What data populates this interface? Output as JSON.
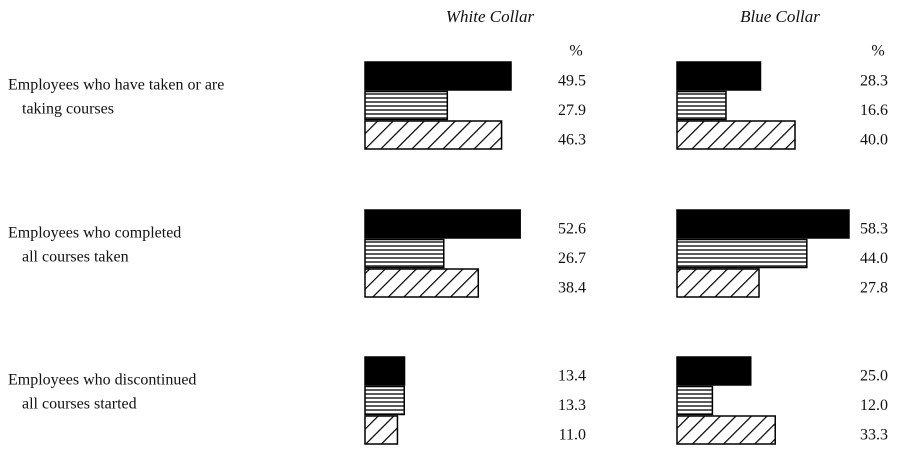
{
  "chart_data": {
    "type": "bar",
    "categories": [
      [
        "Employees who have taken or are",
        "taking courses"
      ],
      [
        "Employees who completed",
        "all courses taken"
      ],
      [
        "Employees who discontinued",
        "all courses started"
      ]
    ],
    "panels": [
      {
        "title": "White Collar",
        "unit": "%",
        "series": [
          {
            "color": "#000000",
            "pattern": "solid",
            "values": [
              49.5,
              52.6,
              13.4
            ],
            "value_labels": [
              "49.5",
              "52.6",
              "13.4"
            ]
          },
          {
            "color": "#000000",
            "pattern": "horizontal",
            "values": [
              27.9,
              26.7,
              13.3
            ],
            "value_labels": [
              "27.9",
              "26.7",
              "13.3"
            ]
          },
          {
            "color": "#000000",
            "pattern": "diagonal",
            "values": [
              46.3,
              38.4,
              11.0
            ],
            "value_labels": [
              "46.3",
              "38.4",
              "11.0"
            ]
          }
        ]
      },
      {
        "title": "Blue Collar",
        "unit": "%",
        "series": [
          {
            "color": "#000000",
            "pattern": "solid",
            "values": [
              28.3,
              58.3,
              25.0
            ],
            "value_labels": [
              "28.3",
              "58.3",
              "25.0"
            ]
          },
          {
            "color": "#000000",
            "pattern": "horizontal",
            "values": [
              16.6,
              44.0,
              12.0
            ],
            "value_labels": [
              "16.6",
              "44.0",
              "12.0"
            ]
          },
          {
            "color": "#000000",
            "pattern": "diagonal",
            "values": [
              40.0,
              27.8,
              33.3
            ],
            "value_labels": [
              "40.0",
              "27.8",
              "33.3"
            ]
          }
        ]
      }
    ]
  }
}
